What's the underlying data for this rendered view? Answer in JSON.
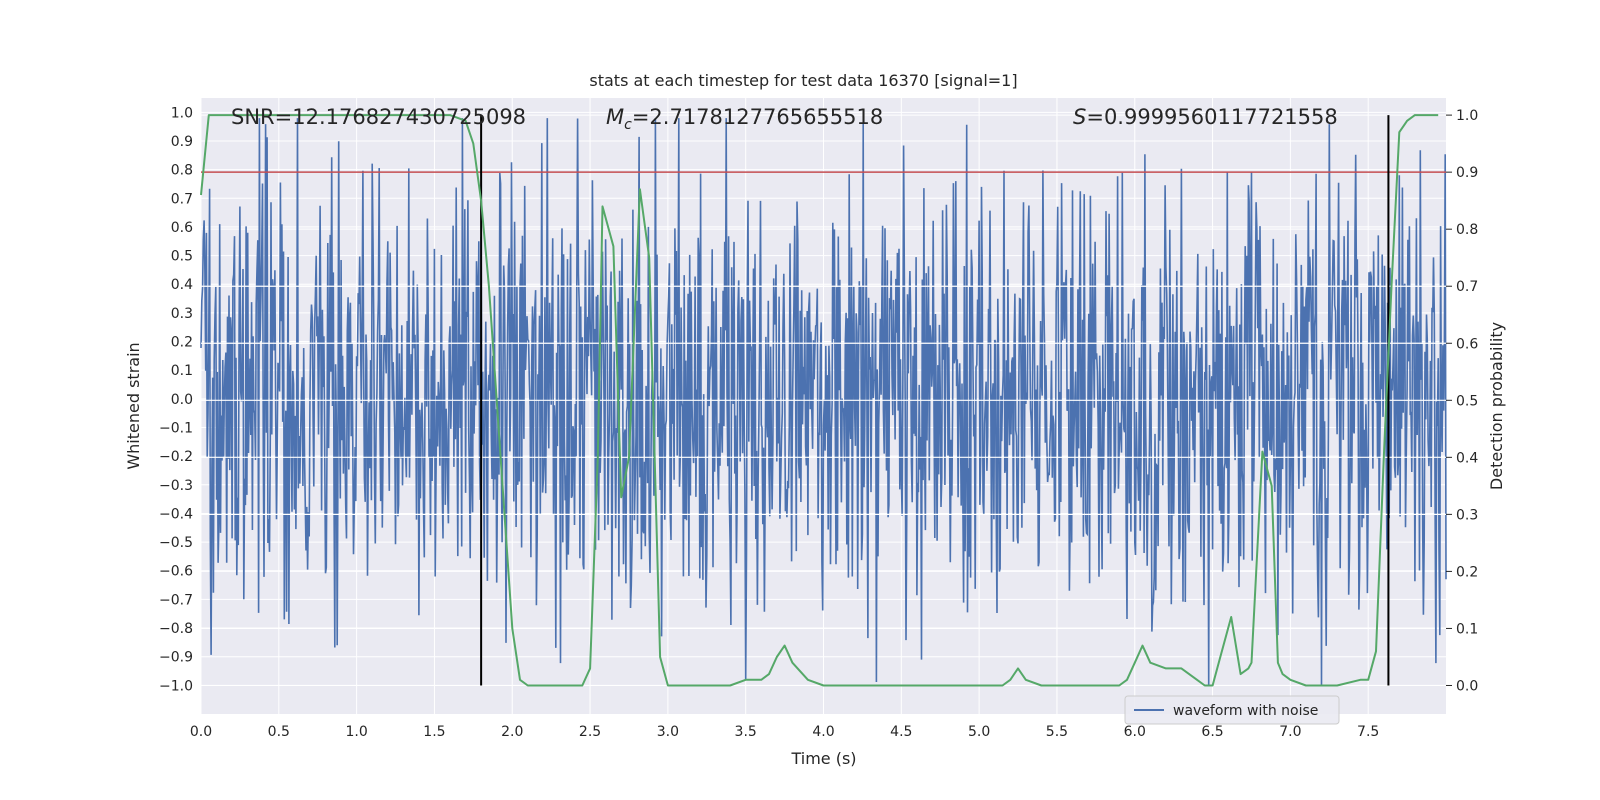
{
  "chart_data": {
    "type": "line",
    "title": "stats at each timestep for test data 16370 [signal=1]",
    "xlabel": "Time (s)",
    "ylabel": "Whitened strain",
    "y2label": "Detection probability",
    "xlim": [
      0.0,
      8.0
    ],
    "ylim": [
      -1.1,
      1.05
    ],
    "y2lim": [
      -0.05,
      1.03
    ],
    "xticks": [
      "0.0",
      "0.5",
      "1.0",
      "1.5",
      "2.0",
      "2.5",
      "3.0",
      "3.5",
      "4.0",
      "4.5",
      "5.0",
      "5.5",
      "6.0",
      "6.5",
      "7.0",
      "7.5"
    ],
    "yticks": [
      "1.0",
      "0.9",
      "0.8",
      "0.7",
      "0.6",
      "0.5",
      "0.4",
      "0.3",
      "0.2",
      "0.1",
      "0.0",
      "-0.1",
      "-0.2",
      "-0.3",
      "-0.4",
      "-0.5",
      "-0.6",
      "-0.7",
      "-0.8",
      "-0.9",
      "-1.0"
    ],
    "y2ticks": [
      "1.0",
      "0.9",
      "0.8",
      "0.7",
      "0.6",
      "0.5",
      "0.4",
      "0.3",
      "0.2",
      "0.1",
      "0.0"
    ],
    "annotations": {
      "snr": "SNR=12.176827430725098",
      "mc_symbol": "M",
      "mc_sub": "c",
      "mc_value": "=2.7178127765655518",
      "s_symbol": "S",
      "s_value": "=0.9999560117721558"
    },
    "vertical_lines_s": [
      1.8,
      7.63
    ],
    "threshold_probability": 0.9,
    "legend": {
      "label": "waveform with noise",
      "placement": "lower-right"
    },
    "series": [
      {
        "name": "waveform with noise",
        "axis": "left",
        "color": "#4c72b0",
        "sample_count": 1600,
        "typical_amplitude": 0.4,
        "peak_max": 1.0,
        "peak_min": -1.0
      },
      {
        "name": "detection probability",
        "axis": "right",
        "color": "#55a868",
        "x": [
          0.0,
          0.05,
          0.1,
          0.3,
          0.6,
          0.9,
          1.2,
          1.5,
          1.6,
          1.7,
          1.75,
          1.8,
          1.85,
          1.9,
          1.95,
          2.0,
          2.05,
          2.1,
          2.15,
          2.2,
          2.3,
          2.4,
          2.45,
          2.5,
          2.55,
          2.58,
          2.65,
          2.7,
          2.75,
          2.82,
          2.88,
          2.95,
          3.0,
          3.1,
          3.3,
          3.4,
          3.5,
          3.6,
          3.65,
          3.7,
          3.75,
          3.8,
          3.9,
          4.0,
          4.2,
          4.5,
          4.8,
          5.0,
          5.15,
          5.2,
          5.25,
          5.3,
          5.4,
          5.6,
          5.9,
          5.95,
          6.0,
          6.05,
          6.1,
          6.2,
          6.3,
          6.4,
          6.45,
          6.5,
          6.55,
          6.62,
          6.68,
          6.73,
          6.75,
          6.82,
          6.88,
          6.92,
          6.95,
          7.0,
          7.1,
          7.3,
          7.45,
          7.5,
          7.55,
          7.6,
          7.65,
          7.7,
          7.75,
          7.8,
          7.85,
          7.95
        ],
        "y": [
          0.86,
          1.0,
          1.0,
          1.0,
          1.0,
          1.0,
          1.0,
          1.0,
          1.0,
          0.99,
          0.95,
          0.85,
          0.7,
          0.5,
          0.3,
          0.1,
          0.01,
          0.0,
          0.0,
          0.0,
          0.0,
          0.0,
          0.0,
          0.03,
          0.4,
          0.84,
          0.77,
          0.33,
          0.4,
          0.87,
          0.75,
          0.05,
          0.0,
          0.0,
          0.0,
          0.0,
          0.01,
          0.01,
          0.02,
          0.05,
          0.07,
          0.04,
          0.01,
          0.0,
          0.0,
          0.0,
          0.0,
          0.0,
          0.0,
          0.01,
          0.03,
          0.01,
          0.0,
          0.0,
          0.0,
          0.01,
          0.04,
          0.07,
          0.04,
          0.03,
          0.03,
          0.01,
          0.0,
          0.0,
          0.05,
          0.12,
          0.02,
          0.03,
          0.04,
          0.41,
          0.35,
          0.04,
          0.02,
          0.01,
          0.0,
          0.0,
          0.01,
          0.01,
          0.06,
          0.4,
          0.7,
          0.97,
          0.99,
          1.0,
          1.0,
          1.0
        ]
      }
    ]
  }
}
